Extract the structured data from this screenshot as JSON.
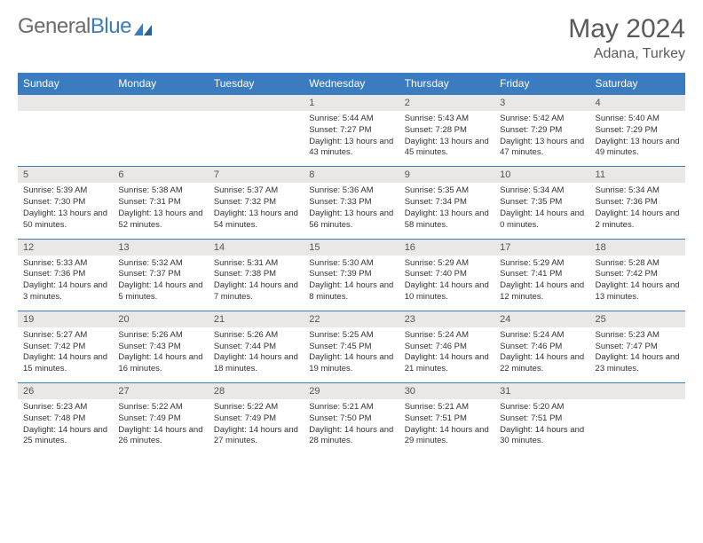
{
  "brand": {
    "part1": "General",
    "part2": "Blue"
  },
  "title": "May 2024",
  "location": "Adana, Turkey",
  "colors": {
    "header_bg": "#3b7bbf",
    "header_text": "#ffffff",
    "daynum_bg": "#e9e8e6",
    "body_text": "#333333",
    "title_text": "#5a5a5a",
    "logo_gray": "#6b6b6b",
    "logo_blue": "#3b7bbf",
    "row_divider": "#3b7bbf",
    "page_bg": "#ffffff"
  },
  "typography": {
    "month_title_fontsize": 30,
    "location_fontsize": 16,
    "dayhead_fontsize": 12,
    "daynum_fontsize": 11,
    "daybody_fontsize": 9.5,
    "logo_fontsize": 24
  },
  "layout": {
    "cols": 7,
    "rows": 5,
    "col_width_pct": 14.28
  },
  "day_headers": [
    "Sunday",
    "Monday",
    "Tuesday",
    "Wednesday",
    "Thursday",
    "Friday",
    "Saturday"
  ],
  "weeks": [
    [
      {
        "n": "",
        "sr": "",
        "ss": "",
        "dl": ""
      },
      {
        "n": "",
        "sr": "",
        "ss": "",
        "dl": ""
      },
      {
        "n": "",
        "sr": "",
        "ss": "",
        "dl": ""
      },
      {
        "n": "1",
        "sr": "5:44 AM",
        "ss": "7:27 PM",
        "dl": "13 hours and 43 minutes."
      },
      {
        "n": "2",
        "sr": "5:43 AM",
        "ss": "7:28 PM",
        "dl": "13 hours and 45 minutes."
      },
      {
        "n": "3",
        "sr": "5:42 AM",
        "ss": "7:29 PM",
        "dl": "13 hours and 47 minutes."
      },
      {
        "n": "4",
        "sr": "5:40 AM",
        "ss": "7:29 PM",
        "dl": "13 hours and 49 minutes."
      }
    ],
    [
      {
        "n": "5",
        "sr": "5:39 AM",
        "ss": "7:30 PM",
        "dl": "13 hours and 50 minutes."
      },
      {
        "n": "6",
        "sr": "5:38 AM",
        "ss": "7:31 PM",
        "dl": "13 hours and 52 minutes."
      },
      {
        "n": "7",
        "sr": "5:37 AM",
        "ss": "7:32 PM",
        "dl": "13 hours and 54 minutes."
      },
      {
        "n": "8",
        "sr": "5:36 AM",
        "ss": "7:33 PM",
        "dl": "13 hours and 56 minutes."
      },
      {
        "n": "9",
        "sr": "5:35 AM",
        "ss": "7:34 PM",
        "dl": "13 hours and 58 minutes."
      },
      {
        "n": "10",
        "sr": "5:34 AM",
        "ss": "7:35 PM",
        "dl": "14 hours and 0 minutes."
      },
      {
        "n": "11",
        "sr": "5:34 AM",
        "ss": "7:36 PM",
        "dl": "14 hours and 2 minutes."
      }
    ],
    [
      {
        "n": "12",
        "sr": "5:33 AM",
        "ss": "7:36 PM",
        "dl": "14 hours and 3 minutes."
      },
      {
        "n": "13",
        "sr": "5:32 AM",
        "ss": "7:37 PM",
        "dl": "14 hours and 5 minutes."
      },
      {
        "n": "14",
        "sr": "5:31 AM",
        "ss": "7:38 PM",
        "dl": "14 hours and 7 minutes."
      },
      {
        "n": "15",
        "sr": "5:30 AM",
        "ss": "7:39 PM",
        "dl": "14 hours and 8 minutes."
      },
      {
        "n": "16",
        "sr": "5:29 AM",
        "ss": "7:40 PM",
        "dl": "14 hours and 10 minutes."
      },
      {
        "n": "17",
        "sr": "5:29 AM",
        "ss": "7:41 PM",
        "dl": "14 hours and 12 minutes."
      },
      {
        "n": "18",
        "sr": "5:28 AM",
        "ss": "7:42 PM",
        "dl": "14 hours and 13 minutes."
      }
    ],
    [
      {
        "n": "19",
        "sr": "5:27 AM",
        "ss": "7:42 PM",
        "dl": "14 hours and 15 minutes."
      },
      {
        "n": "20",
        "sr": "5:26 AM",
        "ss": "7:43 PM",
        "dl": "14 hours and 16 minutes."
      },
      {
        "n": "21",
        "sr": "5:26 AM",
        "ss": "7:44 PM",
        "dl": "14 hours and 18 minutes."
      },
      {
        "n": "22",
        "sr": "5:25 AM",
        "ss": "7:45 PM",
        "dl": "14 hours and 19 minutes."
      },
      {
        "n": "23",
        "sr": "5:24 AM",
        "ss": "7:46 PM",
        "dl": "14 hours and 21 minutes."
      },
      {
        "n": "24",
        "sr": "5:24 AM",
        "ss": "7:46 PM",
        "dl": "14 hours and 22 minutes."
      },
      {
        "n": "25",
        "sr": "5:23 AM",
        "ss": "7:47 PM",
        "dl": "14 hours and 23 minutes."
      }
    ],
    [
      {
        "n": "26",
        "sr": "5:23 AM",
        "ss": "7:48 PM",
        "dl": "14 hours and 25 minutes."
      },
      {
        "n": "27",
        "sr": "5:22 AM",
        "ss": "7:49 PM",
        "dl": "14 hours and 26 minutes."
      },
      {
        "n": "28",
        "sr": "5:22 AM",
        "ss": "7:49 PM",
        "dl": "14 hours and 27 minutes."
      },
      {
        "n": "29",
        "sr": "5:21 AM",
        "ss": "7:50 PM",
        "dl": "14 hours and 28 minutes."
      },
      {
        "n": "30",
        "sr": "5:21 AM",
        "ss": "7:51 PM",
        "dl": "14 hours and 29 minutes."
      },
      {
        "n": "31",
        "sr": "5:20 AM",
        "ss": "7:51 PM",
        "dl": "14 hours and 30 minutes."
      },
      {
        "n": "",
        "sr": "",
        "ss": "",
        "dl": ""
      }
    ]
  ],
  "labels": {
    "sunrise": "Sunrise:",
    "sunset": "Sunset:",
    "daylight": "Daylight:"
  }
}
